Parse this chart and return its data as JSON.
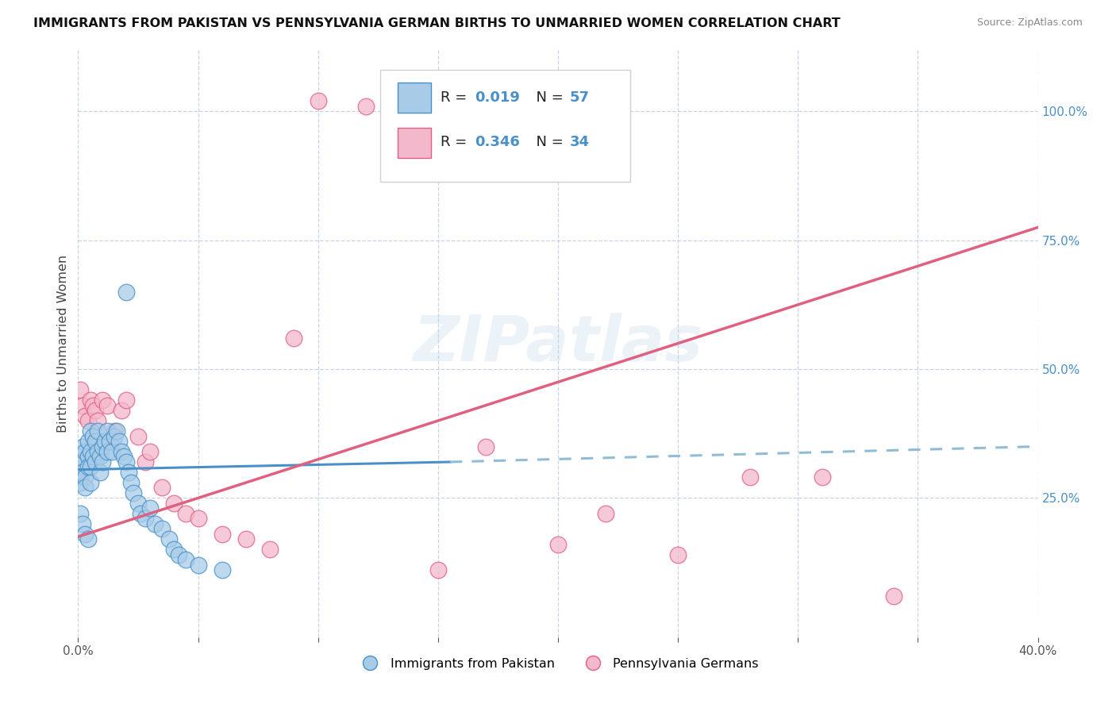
{
  "title": "IMMIGRANTS FROM PAKISTAN VS PENNSYLVANIA GERMAN BIRTHS TO UNMARRIED WOMEN CORRELATION CHART",
  "source": "Source: ZipAtlas.com",
  "ylabel": "Births to Unmarried Women",
  "legend_label1": "Immigrants from Pakistan",
  "legend_label2": "Pennsylvania Germans",
  "R1": "0.019",
  "N1": "57",
  "R2": "0.346",
  "N2": "34",
  "xlim": [
    0.0,
    0.4
  ],
  "ylim": [
    -0.02,
    1.12
  ],
  "xticks": [
    0.0,
    0.05,
    0.1,
    0.15,
    0.2,
    0.25,
    0.3,
    0.35,
    0.4
  ],
  "ytick_vals": [
    0.25,
    0.5,
    0.75,
    1.0
  ],
  "ytick_right_labels": [
    "25.0%",
    "50.0%",
    "75.0%",
    "100.0%"
  ],
  "color_blue_fill": "#a8cce8",
  "color_pink_fill": "#f4b8cc",
  "color_line_blue": "#4a90c8",
  "color_line_pink": "#e06080",
  "color_line_blue_dashed": "#90bcd8",
  "background": "#ffffff",
  "grid_color": "#c8d4e4",
  "blue_scatter_x": [
    0.001,
    0.001,
    0.001,
    0.002,
    0.002,
    0.002,
    0.003,
    0.003,
    0.003,
    0.004,
    0.004,
    0.004,
    0.005,
    0.005,
    0.005,
    0.005,
    0.006,
    0.006,
    0.007,
    0.007,
    0.008,
    0.008,
    0.009,
    0.009,
    0.01,
    0.01,
    0.011,
    0.012,
    0.012,
    0.013,
    0.014,
    0.015,
    0.016,
    0.017,
    0.018,
    0.019,
    0.02,
    0.021,
    0.022,
    0.023,
    0.025,
    0.026,
    0.028,
    0.03,
    0.032,
    0.035,
    0.038,
    0.04,
    0.042,
    0.045,
    0.05,
    0.06,
    0.001,
    0.002,
    0.003,
    0.004,
    0.02
  ],
  "blue_scatter_y": [
    0.3,
    0.33,
    0.28,
    0.32,
    0.35,
    0.3,
    0.34,
    0.29,
    0.27,
    0.36,
    0.33,
    0.31,
    0.38,
    0.34,
    0.31,
    0.28,
    0.37,
    0.33,
    0.36,
    0.32,
    0.38,
    0.34,
    0.33,
    0.3,
    0.35,
    0.32,
    0.36,
    0.38,
    0.34,
    0.36,
    0.34,
    0.37,
    0.38,
    0.36,
    0.34,
    0.33,
    0.32,
    0.3,
    0.28,
    0.26,
    0.24,
    0.22,
    0.21,
    0.23,
    0.2,
    0.19,
    0.17,
    0.15,
    0.14,
    0.13,
    0.12,
    0.11,
    0.22,
    0.2,
    0.18,
    0.17,
    0.65
  ],
  "pink_scatter_x": [
    0.001,
    0.002,
    0.003,
    0.004,
    0.005,
    0.006,
    0.007,
    0.008,
    0.01,
    0.012,
    0.015,
    0.018,
    0.02,
    0.025,
    0.028,
    0.03,
    0.035,
    0.04,
    0.045,
    0.05,
    0.06,
    0.07,
    0.08,
    0.09,
    0.1,
    0.12,
    0.15,
    0.17,
    0.2,
    0.22,
    0.25,
    0.28,
    0.31,
    0.34
  ],
  "pink_scatter_y": [
    0.46,
    0.43,
    0.41,
    0.4,
    0.44,
    0.43,
    0.42,
    0.4,
    0.44,
    0.43,
    0.38,
    0.42,
    0.44,
    0.37,
    0.32,
    0.34,
    0.27,
    0.24,
    0.22,
    0.21,
    0.18,
    0.17,
    0.15,
    0.56,
    1.02,
    1.01,
    0.11,
    0.35,
    0.16,
    0.22,
    0.14,
    0.29,
    0.29,
    0.06
  ],
  "blue_solid_line_x": [
    0.0,
    0.155
  ],
  "blue_solid_line_y": [
    0.305,
    0.32
  ],
  "blue_dashed_line_x": [
    0.155,
    0.4
  ],
  "blue_dashed_line_y": [
    0.32,
    0.35
  ],
  "pink_line_x": [
    0.0,
    0.4
  ],
  "pink_line_y": [
    0.175,
    0.775
  ]
}
